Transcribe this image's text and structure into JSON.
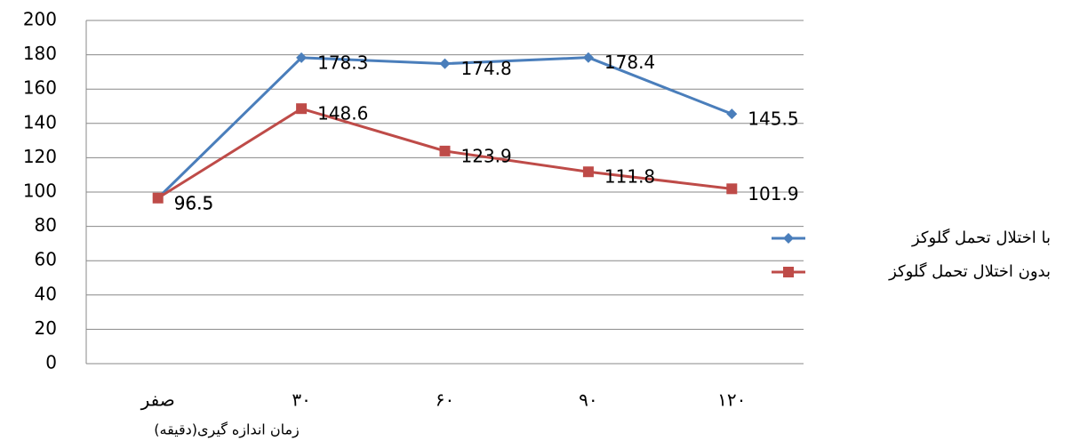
{
  "chart_data": {
    "type": "line",
    "categories": [
      "صفر",
      "۳۰",
      "۶۰",
      "۹۰",
      "۱۲۰"
    ],
    "x_label": "زمان اندازه گیری(دقیقه)",
    "series": [
      {
        "name": "با اختلال تحمل گلوکز",
        "color": "#4a7ebb",
        "marker": "diamond",
        "values": [
          96.5,
          178.3,
          174.8,
          178.4,
          145.5
        ]
      },
      {
        "name": "بدون اختلال تحمل گلوکز",
        "color": "#be4b48",
        "marker": "square",
        "values": [
          96.5,
          148.6,
          123.9,
          111.8,
          101.9
        ]
      }
    ],
    "ylim": [
      0,
      200
    ],
    "yticks": [
      0,
      20,
      40,
      60,
      80,
      100,
      120,
      140,
      160,
      180,
      200
    ],
    "grid": true,
    "legend": "right"
  }
}
